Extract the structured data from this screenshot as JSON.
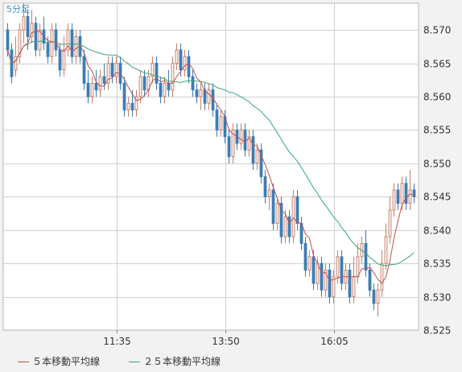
{
  "chart_data": {
    "type": "candlestick",
    "title": "5分足",
    "x_ticks": [
      "11:35",
      "13:50",
      "16:05"
    ],
    "y_ticks": [
      "8.570",
      "8.565",
      "8.560",
      "8.555",
      "8.550",
      "8.545",
      "8.540",
      "8.535",
      "8.530",
      "8.525"
    ],
    "ylim": [
      8.525,
      8.574
    ],
    "grid": true,
    "legend_placement": "bottom",
    "colors": {
      "up": "#c8806c",
      "down": "#3c7cb4",
      "ma5": "#c05050",
      "ma25": "#3aa57a",
      "grid": "#d0d0d0",
      "title": "#2f8fd6"
    },
    "legend": [
      {
        "name": "５本移動平均線",
        "color": "#c05050"
      },
      {
        "name": "２５本移動平均線",
        "color": "#3aa57a"
      }
    ],
    "candles": [
      [
        8.57,
        8.567,
        8.571,
        8.566
      ],
      [
        8.567,
        8.563,
        8.568,
        8.562
      ],
      [
        8.564,
        8.566,
        8.569,
        8.563
      ],
      [
        8.566,
        8.57,
        8.571,
        8.565
      ],
      [
        8.57,
        8.572,
        8.574,
        8.568
      ],
      [
        8.572,
        8.569,
        8.573,
        8.567
      ],
      [
        8.569,
        8.571,
        8.573,
        8.568
      ],
      [
        8.571,
        8.567,
        8.572,
        8.566
      ],
      [
        8.567,
        8.57,
        8.571,
        8.566
      ],
      [
        8.57,
        8.568,
        8.572,
        8.567
      ],
      [
        8.568,
        8.566,
        8.569,
        8.565
      ],
      [
        8.566,
        8.57,
        8.571,
        8.565
      ],
      [
        8.57,
        8.567,
        8.571,
        8.566
      ],
      [
        8.567,
        8.564,
        8.568,
        8.563
      ],
      [
        8.564,
        8.567,
        8.569,
        8.563
      ],
      [
        8.567,
        8.57,
        8.571,
        8.566
      ],
      [
        8.57,
        8.566,
        8.571,
        8.565
      ],
      [
        8.566,
        8.569,
        8.57,
        8.565
      ],
      [
        8.569,
        8.566,
        8.57,
        8.565
      ],
      [
        8.566,
        8.562,
        8.567,
        8.561
      ],
      [
        8.562,
        8.56,
        8.564,
        8.559
      ],
      [
        8.56,
        8.562,
        8.563,
        8.559
      ],
      [
        8.562,
        8.561,
        8.564,
        8.56
      ],
      [
        8.561,
        8.563,
        8.564,
        8.56
      ],
      [
        8.563,
        8.562,
        8.565,
        8.561
      ],
      [
        8.562,
        8.565,
        8.566,
        8.561
      ],
      [
        8.565,
        8.563,
        8.566,
        8.562
      ],
      [
        8.563,
        8.565,
        8.566,
        8.562
      ],
      [
        8.565,
        8.562,
        8.566,
        8.561
      ],
      [
        8.562,
        8.558,
        8.563,
        8.557
      ],
      [
        8.558,
        8.559,
        8.56,
        8.557
      ],
      [
        8.559,
        8.558,
        8.561,
        8.557
      ],
      [
        8.558,
        8.56,
        8.561,
        8.557
      ],
      [
        8.56,
        8.563,
        8.564,
        8.559
      ],
      [
        8.563,
        8.561,
        8.564,
        8.56
      ],
      [
        8.561,
        8.563,
        8.564,
        8.56
      ],
      [
        8.563,
        8.565,
        8.566,
        8.562
      ],
      [
        8.565,
        8.562,
        8.566,
        8.561
      ],
      [
        8.562,
        8.56,
        8.563,
        8.559
      ],
      [
        8.56,
        8.562,
        8.563,
        8.559
      ],
      [
        8.562,
        8.561,
        8.564,
        8.56
      ],
      [
        8.561,
        8.565,
        8.566,
        8.56
      ],
      [
        8.565,
        8.567,
        8.568,
        8.564
      ],
      [
        8.567,
        8.564,
        8.568,
        8.563
      ],
      [
        8.564,
        8.566,
        8.567,
        8.563
      ],
      [
        8.566,
        8.563,
        8.567,
        8.562
      ],
      [
        8.563,
        8.561,
        8.564,
        8.56
      ],
      [
        8.561,
        8.56,
        8.562,
        8.559
      ],
      [
        8.56,
        8.561,
        8.562,
        8.558
      ],
      [
        8.561,
        8.559,
        8.562,
        8.558
      ],
      [
        8.559,
        8.561,
        8.562,
        8.558
      ],
      [
        8.561,
        8.558,
        8.562,
        8.557
      ],
      [
        8.558,
        8.555,
        8.559,
        8.554
      ],
      [
        8.555,
        8.557,
        8.558,
        8.554
      ],
      [
        8.557,
        8.554,
        8.558,
        8.553
      ],
      [
        8.554,
        8.551,
        8.555,
        8.55
      ],
      [
        8.551,
        8.555,
        8.556,
        8.55
      ],
      [
        8.555,
        8.553,
        8.556,
        8.552
      ],
      [
        8.553,
        8.555,
        8.556,
        8.552
      ],
      [
        8.555,
        8.552,
        8.556,
        8.551
      ],
      [
        8.552,
        8.554,
        8.555,
        8.551
      ],
      [
        8.554,
        8.55,
        8.555,
        8.549
      ],
      [
        8.55,
        8.552,
        8.553,
        8.549
      ],
      [
        8.552,
        8.548,
        8.553,
        8.547
      ],
      [
        8.548,
        8.545,
        8.549,
        8.544
      ],
      [
        8.545,
        8.546,
        8.547,
        8.543
      ],
      [
        8.546,
        8.541,
        8.547,
        8.54
      ],
      [
        8.541,
        8.544,
        8.545,
        8.54
      ],
      [
        8.544,
        8.539,
        8.545,
        8.538
      ],
      [
        8.539,
        8.542,
        8.543,
        8.538
      ],
      [
        8.542,
        8.539,
        8.543,
        8.538
      ],
      [
        8.539,
        8.545,
        8.546,
        8.538
      ],
      [
        8.545,
        8.541,
        8.546,
        8.54
      ],
      [
        8.541,
        8.538,
        8.542,
        8.537
      ],
      [
        8.538,
        8.534,
        8.539,
        8.533
      ],
      [
        8.534,
        8.536,
        8.537,
        8.533
      ],
      [
        8.536,
        8.532,
        8.537,
        8.531
      ],
      [
        8.532,
        8.535,
        8.536,
        8.531
      ],
      [
        8.535,
        8.531,
        8.536,
        8.53
      ],
      [
        8.531,
        8.534,
        8.535,
        8.53
      ],
      [
        8.534,
        8.53,
        8.535,
        8.529
      ],
      [
        8.53,
        8.533,
        8.534,
        8.529
      ],
      [
        8.533,
        8.536,
        8.537,
        8.532
      ],
      [
        8.536,
        8.532,
        8.537,
        8.531
      ],
      [
        8.532,
        8.534,
        8.535,
        8.531
      ],
      [
        8.534,
        8.53,
        8.535,
        8.529
      ],
      [
        8.53,
        8.533,
        8.536,
        8.529
      ],
      [
        8.533,
        8.536,
        8.538,
        8.532
      ],
      [
        8.536,
        8.538,
        8.539,
        8.535
      ],
      [
        8.538,
        8.534,
        8.54,
        8.533
      ],
      [
        8.534,
        8.531,
        8.535,
        8.53
      ],
      [
        8.531,
        8.529,
        8.532,
        8.528
      ],
      [
        8.529,
        8.531,
        8.532,
        8.527
      ],
      [
        8.531,
        8.535,
        8.537,
        8.53
      ],
      [
        8.535,
        8.539,
        8.541,
        8.534
      ],
      [
        8.539,
        8.543,
        8.545,
        8.538
      ],
      [
        8.543,
        8.546,
        8.547,
        8.542
      ],
      [
        8.546,
        8.544,
        8.547,
        8.543
      ],
      [
        8.544,
        8.547,
        8.548,
        8.543
      ],
      [
        8.547,
        8.544,
        8.548,
        8.543
      ],
      [
        8.544,
        8.546,
        8.549,
        8.543
      ],
      [
        8.546,
        8.545,
        8.547,
        8.544
      ]
    ]
  }
}
